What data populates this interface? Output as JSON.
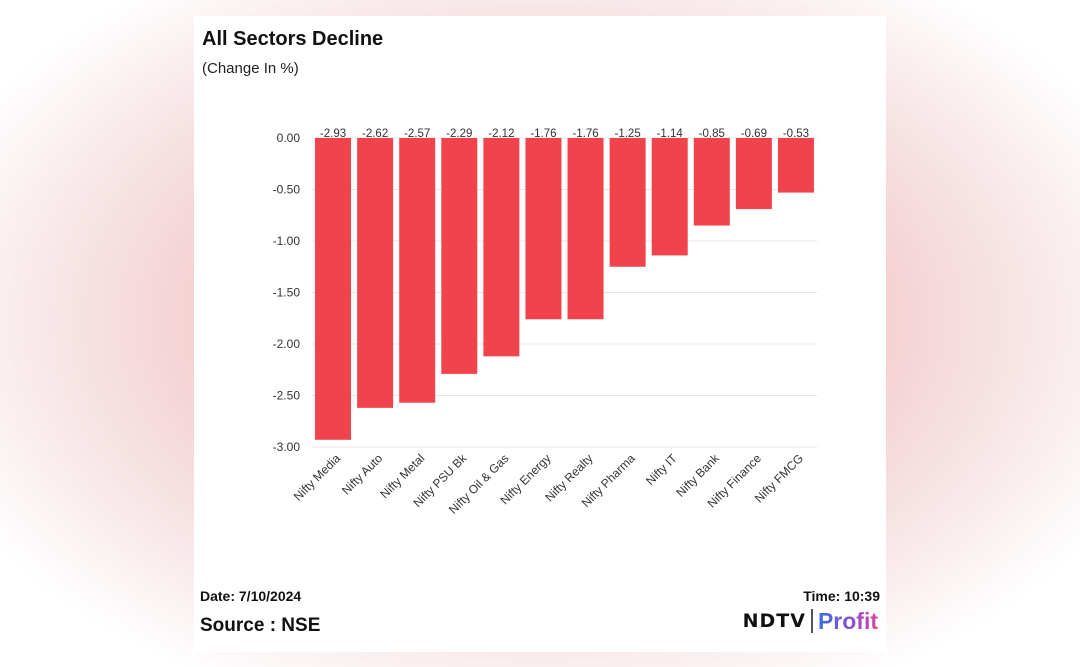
{
  "header": {
    "title": "All Sectors Decline",
    "subtitle": "(Change In %)"
  },
  "footer": {
    "date": "Date: 7/10/2024",
    "source": "Source : NSE",
    "time": "Time: 10:39",
    "logo": {
      "brand": "NDTV",
      "product": "Profit"
    }
  },
  "colors": {
    "bar": "#f0434c",
    "grid": "#e6e6e6",
    "text": "#333333"
  },
  "chart_data": {
    "type": "bar",
    "title": "All Sectors Decline",
    "subtitle": "(Change In %)",
    "xlabel": "",
    "ylabel": "",
    "categories": [
      "Nifty Media",
      "Nifty Auto",
      "Nifty Metal",
      "Nifty PSU Bk",
      "Nifty Oil & Gas",
      "Nifty Energy",
      "Nifty Realty",
      "Nifty Pharma",
      "Nifty IT",
      "Nifty Bank",
      "Nifty Finance",
      "Nifty FMCG"
    ],
    "values": [
      -2.93,
      -2.62,
      -2.57,
      -2.29,
      -2.12,
      -1.76,
      -1.76,
      -1.25,
      -1.14,
      -0.85,
      -0.69,
      -0.53
    ],
    "data_labels": [
      "-2.93",
      "-2.62",
      "-2.57",
      "-2.29",
      "-2.12",
      "-1.76",
      "-1.76",
      "-1.25",
      "-1.14",
      "-0.85",
      "-0.69",
      "-0.53"
    ],
    "yticks": [
      "0.00",
      "-0.50",
      "-1.00",
      "-1.50",
      "-2.00",
      "-2.50",
      "-3.00"
    ],
    "ylim": [
      -3.0,
      0.0
    ],
    "grid": true,
    "legend": "none"
  }
}
